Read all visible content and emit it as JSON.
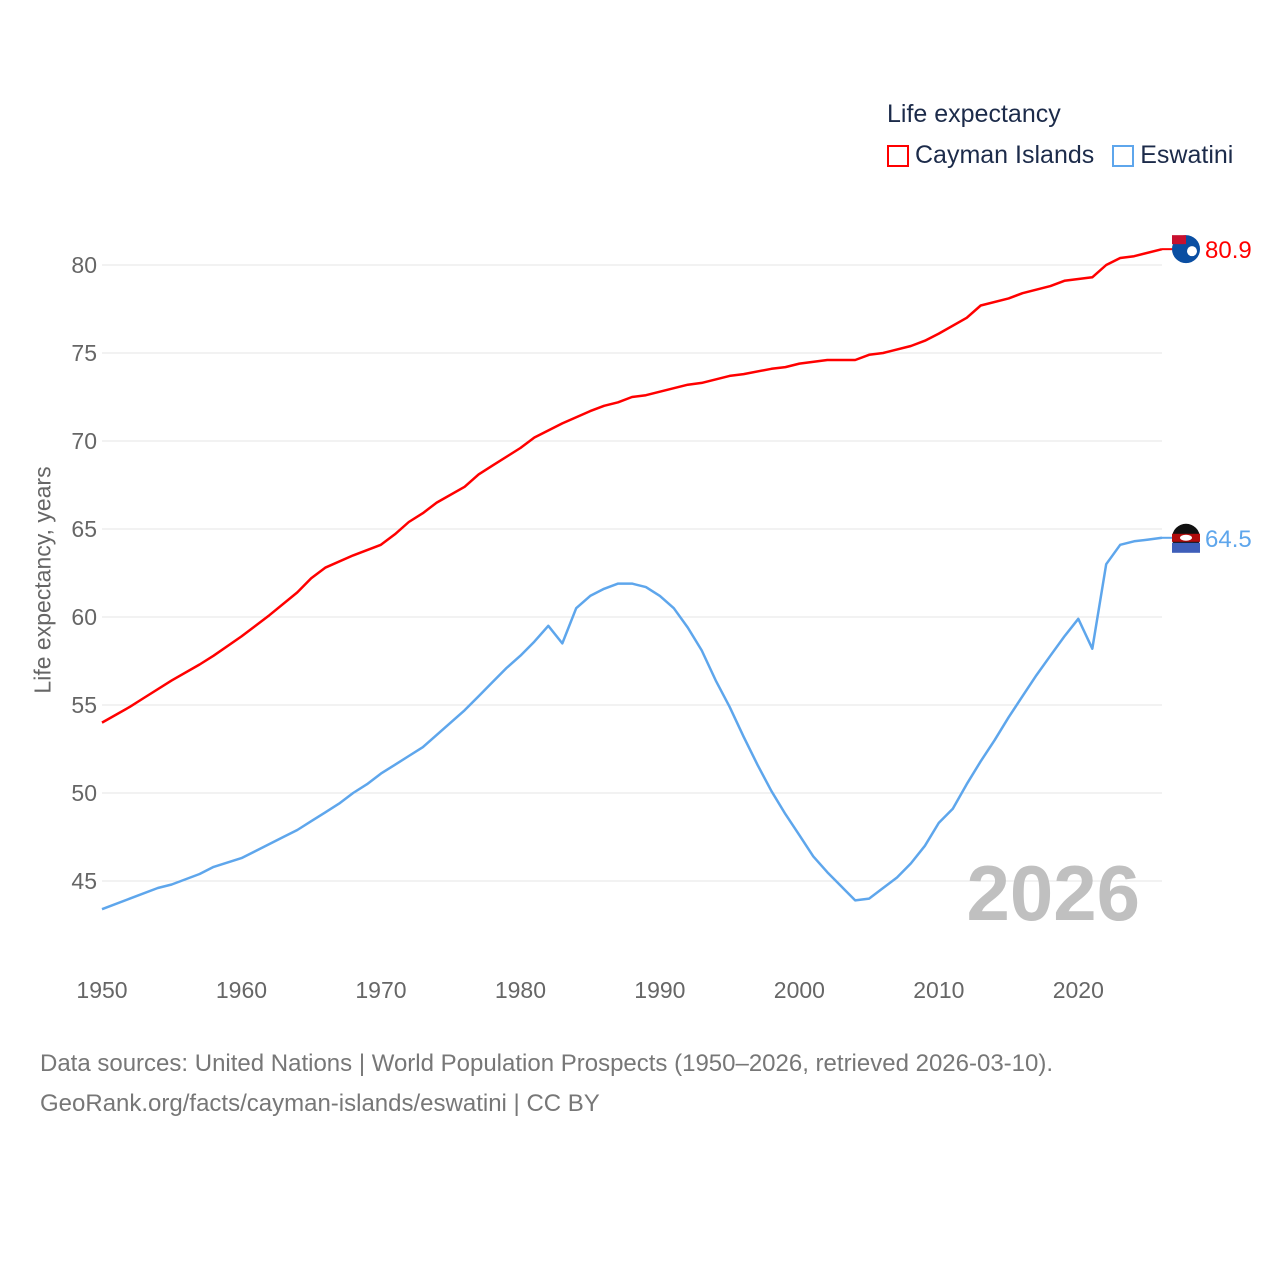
{
  "legend": {
    "title": "Life expectancy",
    "items": [
      {
        "label": "Cayman Islands",
        "color": "#ff0000"
      },
      {
        "label": "Eswatini",
        "color": "#5ea6ec"
      }
    ]
  },
  "watermark_year": "2026",
  "footer": {
    "line1": "Data sources: United Nations | World Population Prospects (1950–2026, retrieved 2026-03-10).",
    "line2": "GeoRank.org/facts/cayman-islands/eswatini | CC BY"
  },
  "chart_data": {
    "type": "line",
    "title": "Life expectancy",
    "xlabel": "",
    "ylabel": "Life expectancy, years",
    "xlim": [
      1950,
      2026
    ],
    "ylim": [
      42,
      82
    ],
    "xticks": [
      1950,
      1960,
      1970,
      1980,
      1990,
      2000,
      2010,
      2020
    ],
    "yticks": [
      45,
      50,
      55,
      60,
      65,
      70,
      75,
      80
    ],
    "grid": true,
    "legend_position": "top-right",
    "series": [
      {
        "name": "Cayman Islands",
        "color": "#ff0000",
        "end_label": "80.9",
        "points": [
          [
            1950,
            54.0
          ],
          [
            1952,
            54.9
          ],
          [
            1953,
            55.4
          ],
          [
            1955,
            56.4
          ],
          [
            1957,
            57.3
          ],
          [
            1958,
            57.8
          ],
          [
            1960,
            58.9
          ],
          [
            1962,
            60.1
          ],
          [
            1964,
            61.4
          ],
          [
            1965,
            62.2
          ],
          [
            1966,
            62.8
          ],
          [
            1968,
            63.5
          ],
          [
            1970,
            64.1
          ],
          [
            1971,
            64.7
          ],
          [
            1972,
            65.4
          ],
          [
            1973,
            65.9
          ],
          [
            1974,
            66.5
          ],
          [
            1976,
            67.4
          ],
          [
            1977,
            68.1
          ],
          [
            1978,
            68.6
          ],
          [
            1980,
            69.6
          ],
          [
            1981,
            70.2
          ],
          [
            1983,
            71.0
          ],
          [
            1985,
            71.7
          ],
          [
            1986,
            72.0
          ],
          [
            1987,
            72.2
          ],
          [
            1988,
            72.5
          ],
          [
            1989,
            72.6
          ],
          [
            1991,
            73.0
          ],
          [
            1992,
            73.2
          ],
          [
            1993,
            73.3
          ],
          [
            1995,
            73.7
          ],
          [
            1996,
            73.8
          ],
          [
            1998,
            74.1
          ],
          [
            1999,
            74.2
          ],
          [
            2000,
            74.4
          ],
          [
            2002,
            74.6
          ],
          [
            2004,
            74.6
          ],
          [
            2005,
            74.9
          ],
          [
            2006,
            75.0
          ],
          [
            2008,
            75.4
          ],
          [
            2009,
            75.7
          ],
          [
            2010,
            76.1
          ],
          [
            2012,
            77.0
          ],
          [
            2013,
            77.7
          ],
          [
            2015,
            78.1
          ],
          [
            2016,
            78.4
          ],
          [
            2018,
            78.8
          ],
          [
            2019,
            79.1
          ],
          [
            2021,
            79.3
          ],
          [
            2022,
            80.0
          ],
          [
            2023,
            80.4
          ],
          [
            2024,
            80.5
          ],
          [
            2026,
            80.9
          ]
        ]
      },
      {
        "name": "Eswatini",
        "color": "#5ea6ec",
        "end_label": "64.5",
        "points": [
          [
            1950,
            43.4
          ],
          [
            1952,
            44.0
          ],
          [
            1954,
            44.6
          ],
          [
            1955,
            44.8
          ],
          [
            1957,
            45.4
          ],
          [
            1958,
            45.8
          ],
          [
            1960,
            46.3
          ],
          [
            1961,
            46.7
          ],
          [
            1963,
            47.5
          ],
          [
            1964,
            47.9
          ],
          [
            1965,
            48.4
          ],
          [
            1966,
            48.9
          ],
          [
            1967,
            49.4
          ],
          [
            1968,
            50.0
          ],
          [
            1969,
            50.5
          ],
          [
            1970,
            51.1
          ],
          [
            1971,
            51.6
          ],
          [
            1972,
            52.1
          ],
          [
            1973,
            52.6
          ],
          [
            1974,
            53.3
          ],
          [
            1975,
            54.0
          ],
          [
            1976,
            54.7
          ],
          [
            1977,
            55.5
          ],
          [
            1978,
            56.3
          ],
          [
            1979,
            57.1
          ],
          [
            1980,
            57.8
          ],
          [
            1981,
            58.6
          ],
          [
            1982,
            59.5
          ],
          [
            1983,
            58.5
          ],
          [
            1984,
            60.5
          ],
          [
            1985,
            61.2
          ],
          [
            1986,
            61.6
          ],
          [
            1987,
            61.9
          ],
          [
            1988,
            61.9
          ],
          [
            1989,
            61.7
          ],
          [
            1990,
            61.2
          ],
          [
            1991,
            60.5
          ],
          [
            1992,
            59.4
          ],
          [
            1993,
            58.1
          ],
          [
            1994,
            56.4
          ],
          [
            1995,
            54.9
          ],
          [
            1996,
            53.2
          ],
          [
            1997,
            51.6
          ],
          [
            1998,
            50.1
          ],
          [
            1999,
            48.8
          ],
          [
            2000,
            47.6
          ],
          [
            2001,
            46.4
          ],
          [
            2002,
            45.5
          ],
          [
            2003,
            44.7
          ],
          [
            2004,
            43.9
          ],
          [
            2005,
            44.0
          ],
          [
            2006,
            44.6
          ],
          [
            2007,
            45.2
          ],
          [
            2008,
            46.0
          ],
          [
            2009,
            47.0
          ],
          [
            2010,
            48.3
          ],
          [
            2011,
            49.1
          ],
          [
            2012,
            50.5
          ],
          [
            2013,
            51.8
          ],
          [
            2014,
            53.0
          ],
          [
            2015,
            54.3
          ],
          [
            2016,
            55.5
          ],
          [
            2017,
            56.7
          ],
          [
            2018,
            57.8
          ],
          [
            2019,
            58.9
          ],
          [
            2020,
            59.9
          ],
          [
            2021,
            58.2
          ],
          [
            2022,
            63.0
          ],
          [
            2023,
            64.1
          ],
          [
            2024,
            64.3
          ],
          [
            2025,
            64.4
          ],
          [
            2026,
            64.5
          ]
        ]
      }
    ]
  }
}
